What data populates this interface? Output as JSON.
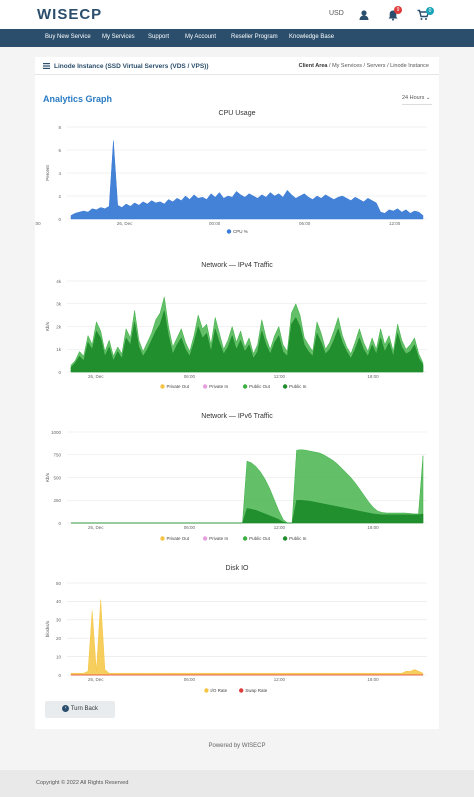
{
  "header": {
    "logo_text": "WISECP",
    "currency": "USD",
    "notifications_count": "9",
    "cart_count": "0"
  },
  "nav": {
    "items": [
      {
        "label": "Buy New Service"
      },
      {
        "label": "My Services"
      },
      {
        "label": "Support"
      },
      {
        "label": "My Account"
      },
      {
        "label": "Reseller Program"
      },
      {
        "label": "Knowledge Base"
      }
    ]
  },
  "page": {
    "title": "Linode Instance (SSD Virtual Servers (VDS / VPS))",
    "breadcrumb": [
      "Client Area",
      "My Services",
      "Servers",
      "Linode Instance"
    ],
    "breadcrumb_sep": "/",
    "analytics_title": "Analytics Graph",
    "range_select": "24 Hours"
  },
  "charts": [
    {
      "title": "CPU Usage",
      "ylabel": "Percent",
      "type": "area",
      "yticks": [
        "0",
        "2",
        "4",
        "6",
        "8"
      ],
      "xticks": [
        "26, Dec",
        "00:00",
        "06:00",
        "12:00",
        "18:00"
      ],
      "series": [
        {
          "name": "CPU %",
          "color": "#3a7bd5"
        }
      ]
    },
    {
      "title": "Network — IPv4 Traffic",
      "ylabel": "Kb/s",
      "type": "area",
      "yticks": [
        "0",
        "1k",
        "2k",
        "3k",
        "4k"
      ],
      "xticks": [
        "26, Dec",
        "06:00",
        "12:00",
        "18:00"
      ],
      "series": [
        {
          "name": "Private Out",
          "color": "#f5c542"
        },
        {
          "name": "Private In",
          "color": "#e6a0e0"
        },
        {
          "name": "Public Out",
          "color": "#3cb043"
        },
        {
          "name": "Public In",
          "color": "#1f8c2b"
        }
      ]
    },
    {
      "title": "Network — IPv6 Traffic",
      "ylabel": "Kb/s",
      "type": "area",
      "yticks": [
        "0",
        "250",
        "500",
        "750",
        "1000"
      ],
      "xticks": [
        "26, Dec",
        "06:00",
        "12:00",
        "18:00"
      ],
      "series": [
        {
          "name": "Private Out",
          "color": "#f5c542"
        },
        {
          "name": "Private In",
          "color": "#e6a0e0"
        },
        {
          "name": "Public Out",
          "color": "#3cb043"
        },
        {
          "name": "Public In",
          "color": "#1f8c2b"
        }
      ]
    },
    {
      "title": "Disk IO",
      "ylabel": "blocks/s",
      "type": "area",
      "yticks": [
        "0",
        "10",
        "20",
        "30",
        "40",
        "50"
      ],
      "xticks": [
        "26, Dec",
        "06:00",
        "12:00",
        "18:00"
      ],
      "series": [
        {
          "name": "I/O Rate",
          "color": "#f5c542"
        },
        {
          "name": "Swap Rate",
          "color": "#e03b3b"
        }
      ]
    }
  ],
  "chart_data": [
    {
      "type": "area",
      "title": "CPU Usage",
      "ylabel": "Percent",
      "ylim": [
        0,
        8
      ],
      "series": [
        {
          "name": "CPU %",
          "values": [
            0.3,
            0.5,
            0.6,
            0.7,
            0.6,
            0.9,
            0.8,
            1.0,
            0.9,
            1.1,
            6.8,
            1.2,
            1.0,
            1.3,
            1.1,
            1.4,
            1.2,
            1.5,
            1.3,
            1.6,
            1.4,
            1.5,
            1.3,
            1.7,
            1.5,
            1.8,
            1.6,
            2.0,
            1.7,
            2.1,
            1.8,
            1.9,
            1.7,
            2.2,
            1.9,
            2.3,
            1.8,
            2.0,
            1.9,
            2.4,
            2.1,
            1.9,
            2.2,
            2.0,
            1.8,
            2.1,
            1.9,
            2.3,
            2.0,
            2.2,
            1.9,
            2.5,
            2.1,
            1.8,
            2.0,
            2.2,
            1.9,
            1.7,
            2.0,
            1.8,
            2.1,
            1.9,
            1.7,
            1.9,
            2.0,
            1.8,
            1.6,
            1.9,
            1.7,
            1.5,
            1.8,
            1.6,
            1.4,
            0.6,
            0.5,
            0.8,
            0.7,
            0.9,
            0.6,
            0.8,
            0.5,
            0.7,
            0.6,
            0.3
          ]
        }
      ]
    },
    {
      "type": "area",
      "title": "Network — IPv4 Traffic",
      "ylabel": "Kb/s",
      "ylim": [
        0,
        4000
      ],
      "series": [
        {
          "name": "Public Out",
          "values": [
            300,
            500,
            900,
            700,
            1600,
            1200,
            2200,
            1800,
            900,
            1400,
            700,
            1100,
            800,
            1900,
            1500,
            2700,
            1400,
            900,
            1300,
            1700,
            2300,
            2600,
            3300,
            2000,
            1100,
            1500,
            1900,
            1300,
            900,
            1600,
            2500,
            1900,
            2100,
            1200,
            2400,
            1700,
            1000,
            1400,
            2000,
            1300,
            1800,
            1100,
            1500,
            800,
            1200,
            2300,
            1500,
            1000,
            1600,
            2000,
            1200,
            900,
            2600,
            3000,
            2500,
            1500,
            1200,
            900,
            2200,
            1700,
            1000,
            1300,
            1800,
            2400,
            1600,
            1100,
            800,
            1300,
            1900,
            1300,
            900,
            1500,
            1000,
            1900,
            1200,
            1600,
            900,
            2100,
            1400,
            1000,
            1200,
            1500,
            800,
            400
          ]
        },
        {
          "name": "Public In",
          "values": [
            200,
            400,
            700,
            500,
            1300,
            1000,
            1800,
            1500,
            700,
            1100,
            500,
            900,
            600,
            1500,
            1200,
            2200,
            1100,
            700,
            1000,
            1400,
            1800,
            2100,
            2700,
            1600,
            800,
            1200,
            1500,
            1000,
            700,
            1300,
            2000,
            1500,
            1700,
            900,
            1900,
            1300,
            800,
            1100,
            1600,
            1000,
            1400,
            900,
            1200,
            600,
            900,
            1800,
            1200,
            800,
            1300,
            1600,
            900,
            700,
            2100,
            2400,
            2000,
            1200,
            900,
            700,
            1700,
            1300,
            800,
            1000,
            1400,
            1900,
            1300,
            900,
            600,
            1000,
            1500,
            1000,
            700,
            1200,
            800,
            1500,
            900,
            1300,
            700,
            1700,
            1100,
            800,
            900,
            1200,
            600,
            300
          ]
        }
      ]
    },
    {
      "type": "area",
      "title": "Network — IPv6 Traffic",
      "ylabel": "Kb/s",
      "ylim": [
        0,
        1000
      ],
      "series": [
        {
          "name": "Public Out",
          "values": [
            0,
            0,
            0,
            0,
            0,
            0,
            0,
            0,
            0,
            0,
            0,
            0,
            0,
            0,
            0,
            0,
            0,
            0,
            0,
            0,
            0,
            0,
            0,
            0,
            0,
            0,
            0,
            0,
            0,
            0,
            0,
            0,
            0,
            0,
            0,
            0,
            0,
            0,
            0,
            680,
            660,
            620,
            560,
            480,
            380,
            260,
            140,
            40,
            0,
            0,
            800,
            805,
            800,
            790,
            780,
            770,
            750,
            720,
            690,
            650,
            600,
            550,
            500,
            440,
            370,
            300,
            230,
            170,
            130,
            115,
            110,
            110,
            110,
            110,
            110,
            105,
            100,
            100,
            740
          ]
        },
        {
          "name": "Public In",
          "values": [
            0,
            0,
            0,
            0,
            0,
            0,
            0,
            0,
            0,
            0,
            0,
            0,
            0,
            0,
            0,
            0,
            0,
            0,
            0,
            0,
            0,
            0,
            0,
            0,
            0,
            0,
            0,
            0,
            0,
            0,
            0,
            0,
            0,
            0,
            0,
            0,
            0,
            0,
            0,
            160,
            150,
            140,
            120,
            100,
            80,
            60,
            40,
            10,
            0,
            0,
            250,
            250,
            245,
            240,
            230,
            220,
            210,
            200,
            190,
            180,
            170,
            160,
            150,
            140,
            130,
            120,
            110,
            100,
            95,
            90,
            90,
            90,
            90,
            90,
            90,
            90,
            90,
            90,
            100
          ]
        }
      ]
    },
    {
      "type": "area",
      "title": "Disk IO",
      "ylabel": "blocks/s",
      "ylim": [
        0,
        50
      ],
      "series": [
        {
          "name": "I/O Rate",
          "values": [
            1,
            1,
            1,
            1,
            2,
            35,
            2,
            41,
            3,
            1,
            1,
            1,
            1,
            1,
            1,
            1,
            1,
            1,
            1,
            1,
            1,
            1,
            1,
            1,
            1,
            1,
            1,
            1,
            1,
            1,
            1,
            1,
            1,
            1,
            1,
            1,
            1,
            1,
            1,
            1,
            1,
            1,
            1,
            1,
            1,
            1,
            1,
            1,
            1,
            1,
            1,
            1,
            1,
            1,
            1,
            1,
            1,
            1,
            1,
            1,
            1,
            1,
            1,
            1,
            1,
            1,
            1,
            1,
            1,
            1,
            1,
            1,
            1,
            1,
            1,
            1,
            1,
            1,
            1,
            2,
            2,
            3,
            2,
            1
          ]
        },
        {
          "name": "Swap Rate",
          "values": [
            0,
            0,
            0,
            0,
            0,
            0,
            0,
            0,
            0,
            0,
            0,
            0,
            0,
            0,
            0,
            0,
            0,
            0,
            0,
            0,
            0,
            0,
            0,
            0,
            0,
            0,
            0,
            0,
            0,
            0,
            0,
            0,
            0,
            0,
            0,
            0,
            0,
            0,
            0,
            0,
            0,
            0,
            0,
            0,
            0,
            0,
            0,
            0,
            0,
            0,
            0,
            0,
            0,
            0,
            0,
            0,
            0,
            0,
            0,
            0,
            0,
            0,
            0,
            0,
            0,
            0,
            0,
            0,
            0,
            0,
            0,
            0,
            0,
            0,
            0,
            0,
            0,
            0,
            0,
            0,
            0,
            0,
            0,
            0
          ]
        }
      ]
    }
  ],
  "actions": {
    "back_label": "Turn Back"
  },
  "footer": {
    "powered": "Powered by WISECP",
    "copyright": "Copyright © 2022 All Rights Reserved"
  }
}
